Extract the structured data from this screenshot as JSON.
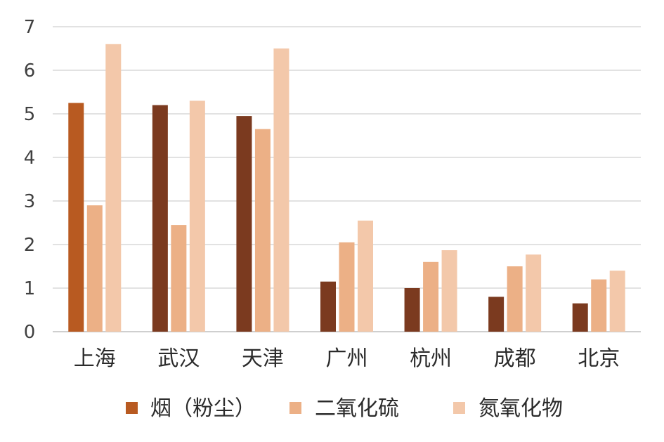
{
  "chart_data": {
    "type": "bar",
    "categories": [
      "上海",
      "武汉",
      "天津",
      "广州",
      "杭州",
      "成都",
      "北京"
    ],
    "series": [
      {
        "name": "烟（粉尘）",
        "values": [
          5.25,
          5.2,
          4.95,
          1.15,
          1.0,
          0.8,
          0.65
        ]
      },
      {
        "name": "二氧化硫",
        "values": [
          2.9,
          2.45,
          4.65,
          2.05,
          1.6,
          1.5,
          1.2
        ]
      },
      {
        "name": "氮氧化物",
        "values": [
          6.6,
          5.3,
          6.5,
          2.55,
          1.87,
          1.77,
          1.4
        ]
      }
    ],
    "ylim": [
      0,
      7
    ],
    "yticks": [
      "0",
      "1",
      "2",
      "3",
      "4",
      "5",
      "6",
      "7"
    ],
    "grid": true,
    "legend_position": "bottom",
    "colors": {
      "series": [
        "#7b3a1f",
        "#ecb086",
        "#f3c8aa"
      ],
      "highlight_first_bar": "#b85a21",
      "legend_first": "#b85a21"
    }
  }
}
